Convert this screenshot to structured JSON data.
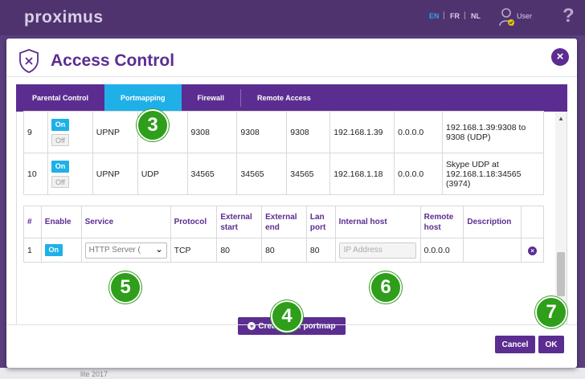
{
  "brand": {
    "logo": "proximus"
  },
  "header": {
    "languages": [
      "EN",
      "FR",
      "NL"
    ],
    "active_language": "EN",
    "user_label": "User"
  },
  "modal": {
    "title": "Access Control",
    "close_label": "×"
  },
  "tabs": [
    {
      "label": "Parental Control",
      "active": false
    },
    {
      "label": "Portmapping",
      "active": true
    },
    {
      "label": "Firewall",
      "active": false
    },
    {
      "label": "Remote Access",
      "active": false
    }
  ],
  "existing_rows": [
    {
      "num": "9",
      "on": "On",
      "off": "Off",
      "service": "UPNP",
      "protocol": "",
      "ext_start": "9308",
      "ext_end": "9308",
      "lan_port": "9308",
      "internal_host": "192.168.1.39",
      "remote_host": "0.0.0.0",
      "description": "192.168.1.39:9308 to 9308 (UDP)"
    },
    {
      "num": "10",
      "on": "On",
      "off": "Off",
      "service": "UPNP",
      "protocol": "UDP",
      "ext_start": "34565",
      "ext_end": "34565",
      "lan_port": "34565",
      "internal_host": "192.168.1.18",
      "remote_host": "0.0.0.0",
      "description": "Skype UDP at 192.168.1.18:34565 (3974)"
    }
  ],
  "new_table": {
    "headers": {
      "num": "#",
      "enable": "Enable",
      "service": "Service",
      "protocol": "Protocol",
      "ext_start": "External start",
      "ext_end": "External end",
      "lan_port": "Lan port",
      "internal_host": "Internal host",
      "remote_host": "Remote host",
      "description": "Description"
    },
    "row": {
      "num": "1",
      "enable": "On",
      "service_selected": "HTTP Server (",
      "protocol": "TCP",
      "ext_start": "80",
      "ext_end": "80",
      "lan_port": "80",
      "internal_host_placeholder": "IP Address",
      "remote_host": "0.0.0.0",
      "description": ""
    }
  },
  "buttons": {
    "create": "Create new portmap",
    "cancel": "Cancel",
    "ok": "OK"
  },
  "markers": [
    "3",
    "4",
    "5",
    "6",
    "7"
  ],
  "background": {
    "snippet": "lite 2017"
  },
  "colors": {
    "brand_purple": "#5c2d91",
    "accent_blue": "#1fb0e8",
    "marker_green": "#2e9e1b"
  }
}
